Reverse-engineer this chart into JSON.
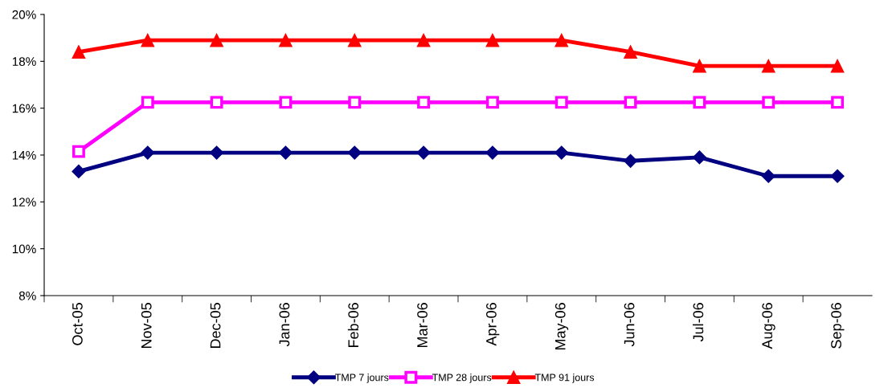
{
  "chart_data": {
    "type": "line",
    "categories": [
      "Oct-05",
      "Nov-05",
      "Dec-05",
      "Jan-06",
      "Feb-06",
      "Mar-06",
      "Apr-06",
      "May-06",
      "Jun-06",
      "Jul-06",
      "Aug-06",
      "Sep-06"
    ],
    "series": [
      {
        "name": "TMP 7 jours",
        "color": "#000080",
        "marker": "diamond",
        "values": [
          13.3,
          14.1,
          14.1,
          14.1,
          14.1,
          14.1,
          14.1,
          14.1,
          13.75,
          13.9,
          13.1,
          13.1
        ]
      },
      {
        "name": "TMP 28 jours",
        "color": "#ff00ff",
        "marker": "square",
        "values": [
          14.15,
          16.25,
          16.25,
          16.25,
          16.25,
          16.25,
          16.25,
          16.25,
          16.25,
          16.25,
          16.25,
          16.25
        ]
      },
      {
        "name": "TMP 91 jours",
        "color": "#ff0000",
        "marker": "triangle",
        "values": [
          18.4,
          18.9,
          18.9,
          18.9,
          18.9,
          18.9,
          18.9,
          18.9,
          18.4,
          17.8,
          17.8,
          17.8
        ]
      }
    ],
    "ylim": [
      8,
      20
    ],
    "yticks": [
      {
        "value": 8,
        "label": "8%"
      },
      {
        "value": 10,
        "label": "10%"
      },
      {
        "value": 12,
        "label": "12%"
      },
      {
        "value": 14,
        "label": "14%"
      },
      {
        "value": 16,
        "label": "16%"
      },
      {
        "value": 18,
        "label": "18%"
      },
      {
        "value": 20,
        "label": "20%"
      }
    ],
    "grid": false,
    "legend": "bottom",
    "line_style": "solid"
  }
}
